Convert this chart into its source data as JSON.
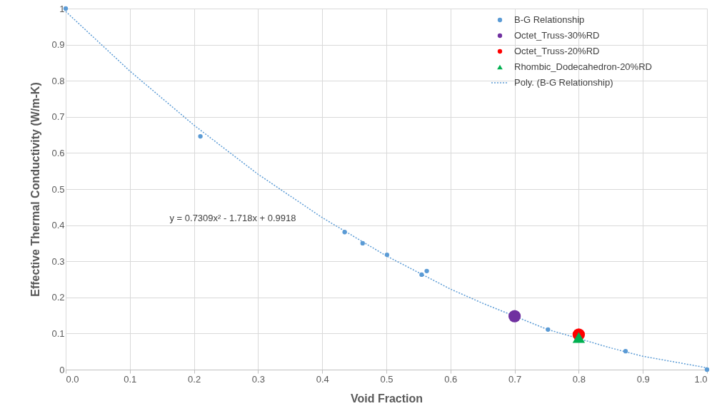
{
  "chart_data": {
    "type": "scatter",
    "xlabel": "Void Fraction",
    "ylabel": "Effective Thermal Conductivity (W/m-K)",
    "xlim": [
      0,
      1
    ],
    "ylim": [
      0,
      1
    ],
    "xticks": [
      {
        "value": 0,
        "label": "0.0"
      },
      0.1,
      0.2,
      0.3,
      0.4,
      0.5,
      0.6,
      0.7,
      0.8,
      0.9,
      {
        "value": 1,
        "label": "1.0"
      }
    ],
    "yticks": [
      0,
      0.1,
      0.2,
      0.3,
      0.4,
      0.5,
      0.6,
      0.7,
      0.8,
      0.9,
      1
    ],
    "grid": true,
    "legend": "top right",
    "series": [
      {
        "name": "B-G Relationship",
        "marker": "circle",
        "color": "#5b9bd5",
        "x": [
          0,
          0.21,
          0.435,
          0.463,
          0.501,
          0.555,
          0.563,
          0.752,
          0.873,
          1
        ],
        "values": [
          1,
          0.646,
          0.381,
          0.35,
          0.318,
          0.263,
          0.273,
          0.111,
          0.051,
          0
        ]
      },
      {
        "name": "Octet_Truss-30%RD",
        "marker": "circle",
        "color": "#7030a0",
        "x": [
          0.7
        ],
        "values": [
          0.148
        ]
      },
      {
        "name": "Octet_Truss-20%RD",
        "marker": "circle",
        "color": "#ff0000",
        "x": [
          0.8
        ],
        "values": [
          0.097
        ]
      },
      {
        "name": "Rhombic_Dodecahedron-20%RD",
        "marker": "triangle",
        "color": "#00b050",
        "x": [
          0.8
        ],
        "values": [
          0.089
        ]
      },
      {
        "name": "Poly. (B-G Relationship)",
        "type": "line",
        "line_style": "dotted",
        "color": "#5b9bd5",
        "x": [
          0,
          0.1,
          0.2,
          0.3,
          0.4,
          0.5,
          0.6,
          0.65,
          0.75,
          0.85,
          0.9,
          1
        ],
        "values": [
          0.992,
          0.827,
          0.677,
          0.541,
          0.421,
          0.315,
          0.223,
          0.184,
          0.112,
          0.06,
          0.037,
          0.005
        ]
      }
    ],
    "annotations": [
      "y = 0.7309x² - 1.718x + 0.9918"
    ]
  }
}
